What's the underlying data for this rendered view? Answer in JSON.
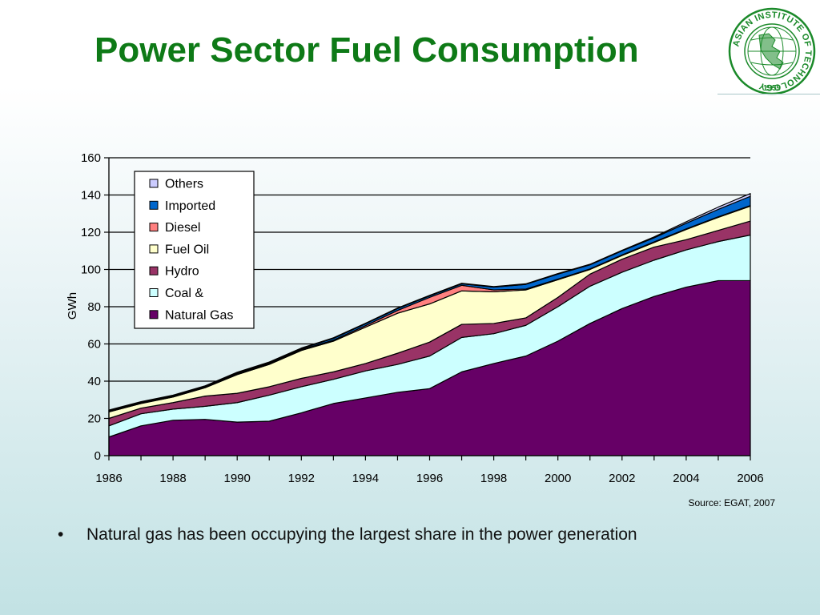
{
  "slide": {
    "title": "Power Sector Fuel Consumption",
    "source": "Source: EGAT, 2007",
    "bullet": "Natural gas has been occupying the largest share in the power generation",
    "bullet_symbol": "•"
  },
  "logo": {
    "ring_text": "ASIAN INSTITUTE OF TECHNOLOGY",
    "year": "1959",
    "colors": {
      "ring": "#1b8a2a",
      "globe": "#1b8a2a"
    }
  },
  "chart_data": {
    "type": "area",
    "stacked": true,
    "ylabel": "GWh",
    "xlabel": "",
    "ylim": [
      0,
      160
    ],
    "yticks": [
      0,
      20,
      40,
      60,
      80,
      100,
      120,
      140,
      160
    ],
    "xticks": [
      1986,
      1988,
      1990,
      1992,
      1994,
      1996,
      1998,
      2000,
      2002,
      2004,
      2006
    ],
    "x": [
      1986,
      1987,
      1988,
      1989,
      1990,
      1991,
      1992,
      1993,
      1994,
      1995,
      1996,
      1997,
      1998,
      1999,
      2000,
      2001,
      2002,
      2003,
      2004,
      2005,
      2006
    ],
    "grid": "horizontal",
    "legend_position": "top-left",
    "series": [
      {
        "name": "Natural Gas",
        "color": "#660066",
        "values": [
          10,
          16,
          19,
          19.5,
          18,
          18.5,
          23,
          28,
          31,
          34,
          36,
          45,
          49.5,
          53.5,
          61.5,
          71,
          79,
          85.5,
          90.5,
          94,
          94
        ]
      },
      {
        "name": "Coal &",
        "color": "#ccffff",
        "values": [
          6,
          6.5,
          6,
          7,
          10.5,
          14,
          14,
          13,
          14.5,
          15,
          17.5,
          18.5,
          16,
          16.5,
          18.5,
          20,
          19.5,
          19.5,
          20,
          21,
          24.5
        ]
      },
      {
        "name": "Hydro",
        "color": "#993366",
        "values": [
          4,
          3,
          3.5,
          5.5,
          5,
          4.5,
          4.5,
          4,
          4,
          6,
          7.5,
          7,
          5.5,
          4,
          5,
          6.5,
          7,
          7,
          5.5,
          6,
          7.5
        ]
      },
      {
        "name": "Fuel Oil",
        "color": "#ffffcc",
        "values": [
          3.5,
          2.5,
          3,
          4.5,
          10,
          12,
          15,
          16.5,
          19.5,
          21.5,
          20.5,
          18,
          17,
          15,
          9.5,
          2.5,
          2,
          2.5,
          5.5,
          7,
          8
        ]
      },
      {
        "name": "Diesel",
        "color": "#ff8080",
        "values": [
          0.5,
          0.5,
          0.5,
          0.5,
          0.5,
          0.5,
          0.5,
          0.5,
          0.8,
          1.5,
          3.5,
          3,
          1,
          0.5,
          0.3,
          0.3,
          0.3,
          0.3,
          0.3,
          0.3,
          0.3
        ]
      },
      {
        "name": "Imported",
        "color": "#0066cc",
        "values": [
          0.3,
          0.3,
          0.3,
          0.3,
          0.5,
          0.5,
          0.5,
          1,
          1,
          1,
          0.8,
          0.8,
          1.5,
          2.5,
          2.7,
          2.2,
          2.2,
          2.2,
          3,
          4,
          5
        ]
      },
      {
        "name": "Others",
        "color": "#ccccff",
        "values": [
          0.2,
          0.2,
          0.2,
          0.2,
          0.3,
          0.3,
          0.3,
          0.3,
          0.3,
          0.3,
          0.3,
          0.3,
          0.3,
          0.3,
          0.3,
          0.3,
          0.3,
          0.5,
          0.8,
          1.2,
          1.5
        ]
      }
    ],
    "legend_order": [
      "Others",
      "Imported",
      "Diesel",
      "Fuel Oil",
      "Hydro",
      "Coal &",
      "Natural Gas"
    ]
  }
}
